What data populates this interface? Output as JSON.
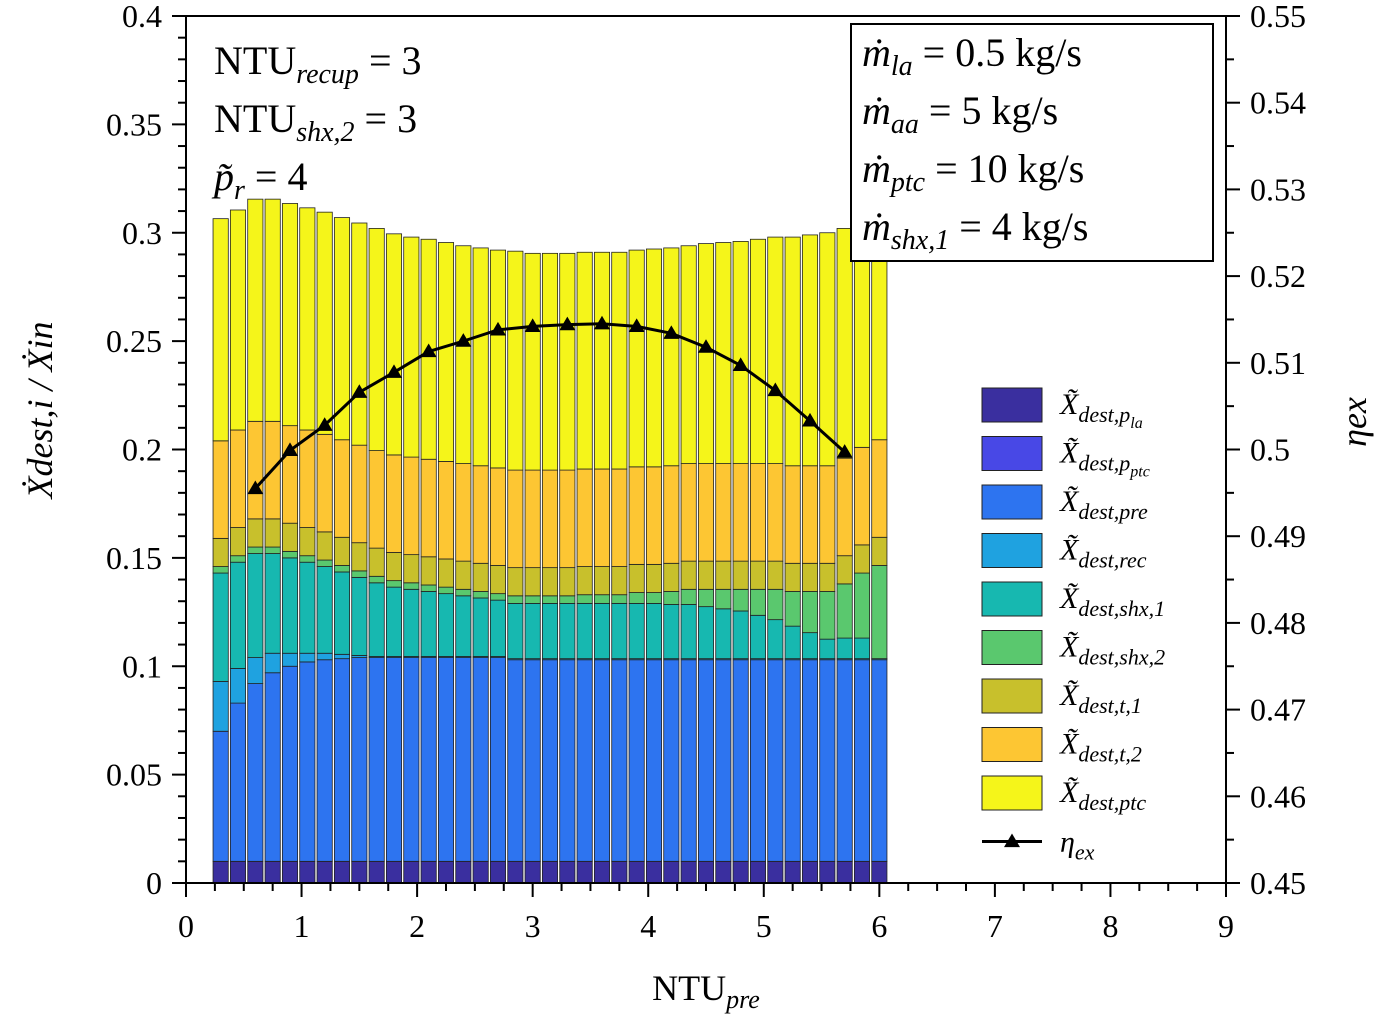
{
  "chart_data": {
    "type": "bar",
    "stacked": true,
    "x": [
      0.3,
      0.45,
      0.6,
      0.75,
      0.9,
      1.05,
      1.2,
      1.35,
      1.5,
      1.65,
      1.8,
      1.95,
      2.1,
      2.25,
      2.4,
      2.55,
      2.7,
      2.85,
      3.0,
      3.15,
      3.3,
      3.45,
      3.6,
      3.75,
      3.9,
      4.05,
      4.2,
      4.35,
      4.5,
      4.65,
      4.8,
      4.95,
      5.1,
      5.25,
      5.4,
      5.55,
      5.7,
      5.85,
      6.0
    ],
    "xlabel": "NTU",
    "xlabel_sub": "pre",
    "xlim": [
      0,
      9
    ],
    "xticks": [
      0,
      1,
      2,
      3,
      4,
      5,
      6,
      7,
      8,
      9
    ],
    "ylabel": "Ẋdest,i / Ẋin",
    "ylim": [
      0,
      0.4
    ],
    "yticks": [
      "0",
      "0.05",
      "0.1",
      "0.15",
      "0.2",
      "0.25",
      "0.3",
      "0.35",
      "0.4"
    ],
    "y2label": "ηex",
    "y2lim": [
      0.45,
      0.55
    ],
    "y2ticks": [
      "0.45",
      "0.46",
      "0.47",
      "0.48",
      "0.49",
      "0.5",
      "0.51",
      "0.52",
      "0.53",
      "0.54",
      "0.55"
    ],
    "legend_position": "right",
    "series": [
      {
        "name": "X̃dest,pla",
        "sub": "dest,p",
        "subsub": "la",
        "color": "#3a2f9f",
        "values": [
          0.01,
          0.01,
          0.01,
          0.01,
          0.01,
          0.01,
          0.01,
          0.01,
          0.01,
          0.01,
          0.01,
          0.01,
          0.01,
          0.01,
          0.01,
          0.01,
          0.01,
          0.01,
          0.01,
          0.01,
          0.01,
          0.01,
          0.01,
          0.01,
          0.01,
          0.01,
          0.01,
          0.01,
          0.01,
          0.01,
          0.01,
          0.01,
          0.01,
          0.01,
          0.01,
          0.01,
          0.01,
          0.01,
          0.01
        ]
      },
      {
        "name": "X̃dest,pptc",
        "sub": "dest,p",
        "subsub": "ptc",
        "color": "#4848e6",
        "values": [
          0,
          0,
          0,
          0,
          0,
          0,
          0,
          0,
          0,
          0,
          0,
          0,
          0,
          0,
          0,
          0,
          0,
          0,
          0,
          0,
          0,
          0,
          0,
          0,
          0,
          0,
          0,
          0,
          0,
          0,
          0,
          0,
          0,
          0,
          0,
          0,
          0,
          0,
          0
        ]
      },
      {
        "name": "X̃dest,pre",
        "sub": "dest,pre",
        "color": "#2d74f0",
        "values": [
          0.06,
          0.073,
          0.082,
          0.087,
          0.09,
          0.092,
          0.093,
          0.0935,
          0.094,
          0.094,
          0.094,
          0.094,
          0.094,
          0.094,
          0.094,
          0.094,
          0.094,
          0.093,
          0.093,
          0.093,
          0.093,
          0.093,
          0.093,
          0.093,
          0.093,
          0.093,
          0.093,
          0.093,
          0.093,
          0.093,
          0.093,
          0.093,
          0.093,
          0.093,
          0.093,
          0.093,
          0.093,
          0.093,
          0.093
        ]
      },
      {
        "name": "X̃dest,rec",
        "sub": "dest,rec",
        "color": "#1fa2e0",
        "values": [
          0.023,
          0.016,
          0.012,
          0.009,
          0.006,
          0.004,
          0.003,
          0.002,
          0.001,
          0.0005,
          0.0005,
          0.0005,
          0.0005,
          0.0005,
          0.0005,
          0.0005,
          0.0005,
          0.0005,
          0.0005,
          0.0005,
          0.0005,
          0.0005,
          0.0005,
          0.0005,
          0.0005,
          0.0005,
          0.0005,
          0.0005,
          0.0005,
          0.0005,
          0.0005,
          0.0005,
          0.0005,
          0.0005,
          0.0005,
          0.0005,
          0.0005,
          0.0005,
          0.0005
        ]
      },
      {
        "name": "X̃dest,shx,1",
        "sub": "dest,shx,1",
        "color": "#17b8b0",
        "values": [
          0.05,
          0.049,
          0.048,
          0.046,
          0.044,
          0.042,
          0.04,
          0.038,
          0.036,
          0.034,
          0.032,
          0.031,
          0.03,
          0.029,
          0.028,
          0.027,
          0.026,
          0.0255,
          0.0255,
          0.0255,
          0.0255,
          0.0255,
          0.0255,
          0.0255,
          0.0255,
          0.0255,
          0.025,
          0.025,
          0.024,
          0.023,
          0.022,
          0.02,
          0.018,
          0.015,
          0.012,
          0.009,
          0.0095,
          0.0095,
          0
        ]
      },
      {
        "name": "X̃dest,shx,2",
        "sub": "dest,shx,2",
        "color": "#5ac86e",
        "values": [
          0.003,
          0.003,
          0.003,
          0.003,
          0.003,
          0.003,
          0.003,
          0.003,
          0.003,
          0.003,
          0.003,
          0.003,
          0.003,
          0.003,
          0.003,
          0.003,
          0.003,
          0.0035,
          0.0035,
          0.0035,
          0.0035,
          0.004,
          0.004,
          0.004,
          0.005,
          0.005,
          0.006,
          0.007,
          0.008,
          0.009,
          0.01,
          0.012,
          0.014,
          0.016,
          0.019,
          0.022,
          0.025,
          0.03,
          0.043
        ]
      },
      {
        "name": "X̃dest,t,1",
        "sub": "dest,t,1",
        "color": "#c8c02c",
        "values": [
          0.013,
          0.013,
          0.013,
          0.013,
          0.013,
          0.013,
          0.013,
          0.013,
          0.013,
          0.013,
          0.013,
          0.013,
          0.013,
          0.013,
          0.013,
          0.013,
          0.013,
          0.013,
          0.013,
          0.013,
          0.013,
          0.013,
          0.013,
          0.013,
          0.013,
          0.013,
          0.013,
          0.013,
          0.013,
          0.013,
          0.013,
          0.013,
          0.013,
          0.013,
          0.013,
          0.013,
          0.013,
          0.013,
          0.013
        ]
      },
      {
        "name": "X̃dest,t,2",
        "sub": "dest,t,2",
        "color": "#fdc633",
        "values": [
          0.045,
          0.045,
          0.045,
          0.045,
          0.045,
          0.045,
          0.045,
          0.045,
          0.045,
          0.045,
          0.045,
          0.045,
          0.045,
          0.045,
          0.045,
          0.045,
          0.045,
          0.045,
          0.045,
          0.045,
          0.045,
          0.045,
          0.045,
          0.045,
          0.045,
          0.045,
          0.045,
          0.045,
          0.045,
          0.045,
          0.045,
          0.045,
          0.045,
          0.045,
          0.045,
          0.045,
          0.045,
          0.045,
          0.045
        ]
      },
      {
        "name": "X̃dest,ptc",
        "sub": "dest,ptc",
        "color": "#f5f51a",
        "values": [
          0.1025,
          0.1015,
          0.1025,
          0.1025,
          0.1025,
          0.1025,
          0.1025,
          0.1025,
          0.1025,
          0.1025,
          0.102,
          0.1015,
          0.1015,
          0.101,
          0.1005,
          0.1005,
          0.1005,
          0.101,
          0.1,
          0.1,
          0.1,
          0.1,
          0.1,
          0.1,
          0.1,
          0.1005,
          0.1005,
          0.1005,
          0.1015,
          0.102,
          0.1025,
          0.1035,
          0.1045,
          0.1055,
          0.1065,
          0.1075,
          0.106,
          0.1075,
          0.0885
        ]
      }
    ],
    "line": {
      "name": "ηex",
      "sub": "ex",
      "color": "#000000",
      "marker": "triangle",
      "x": [
        0.6,
        0.9,
        1.2,
        1.5,
        1.8,
        2.1,
        2.4,
        2.7,
        3.0,
        3.3,
        3.6,
        3.9,
        4.2,
        4.5,
        4.8,
        5.1,
        5.4,
        5.7
      ],
      "values": [
        0.4955,
        0.4999,
        0.5028,
        0.5066,
        0.5089,
        0.5113,
        0.5125,
        0.5138,
        0.5142,
        0.5144,
        0.5145,
        0.5142,
        0.5134,
        0.5118,
        0.5097,
        0.5068,
        0.5033,
        0.4997
      ]
    },
    "annotations_left": [
      {
        "main": "NTU",
        "sub": "recup",
        "rest": " = 3"
      },
      {
        "main": "NTU",
        "sub": "shx,2",
        "rest": " = 3"
      },
      {
        "main": "p̃",
        "sub": "r",
        "rest": " = 4"
      }
    ],
    "annotations_box": [
      {
        "main": "ṁ",
        "sub": "la",
        "rest": " = 0.5 kg/s"
      },
      {
        "main": "ṁ",
        "sub": "aa",
        "rest": " = 5 kg/s"
      },
      {
        "main": "ṁ",
        "sub": "ptc",
        "rest": " = 10 kg/s"
      },
      {
        "main": "ṁ",
        "sub": "shx,1",
        "rest": " = 4 kg/s"
      }
    ]
  }
}
